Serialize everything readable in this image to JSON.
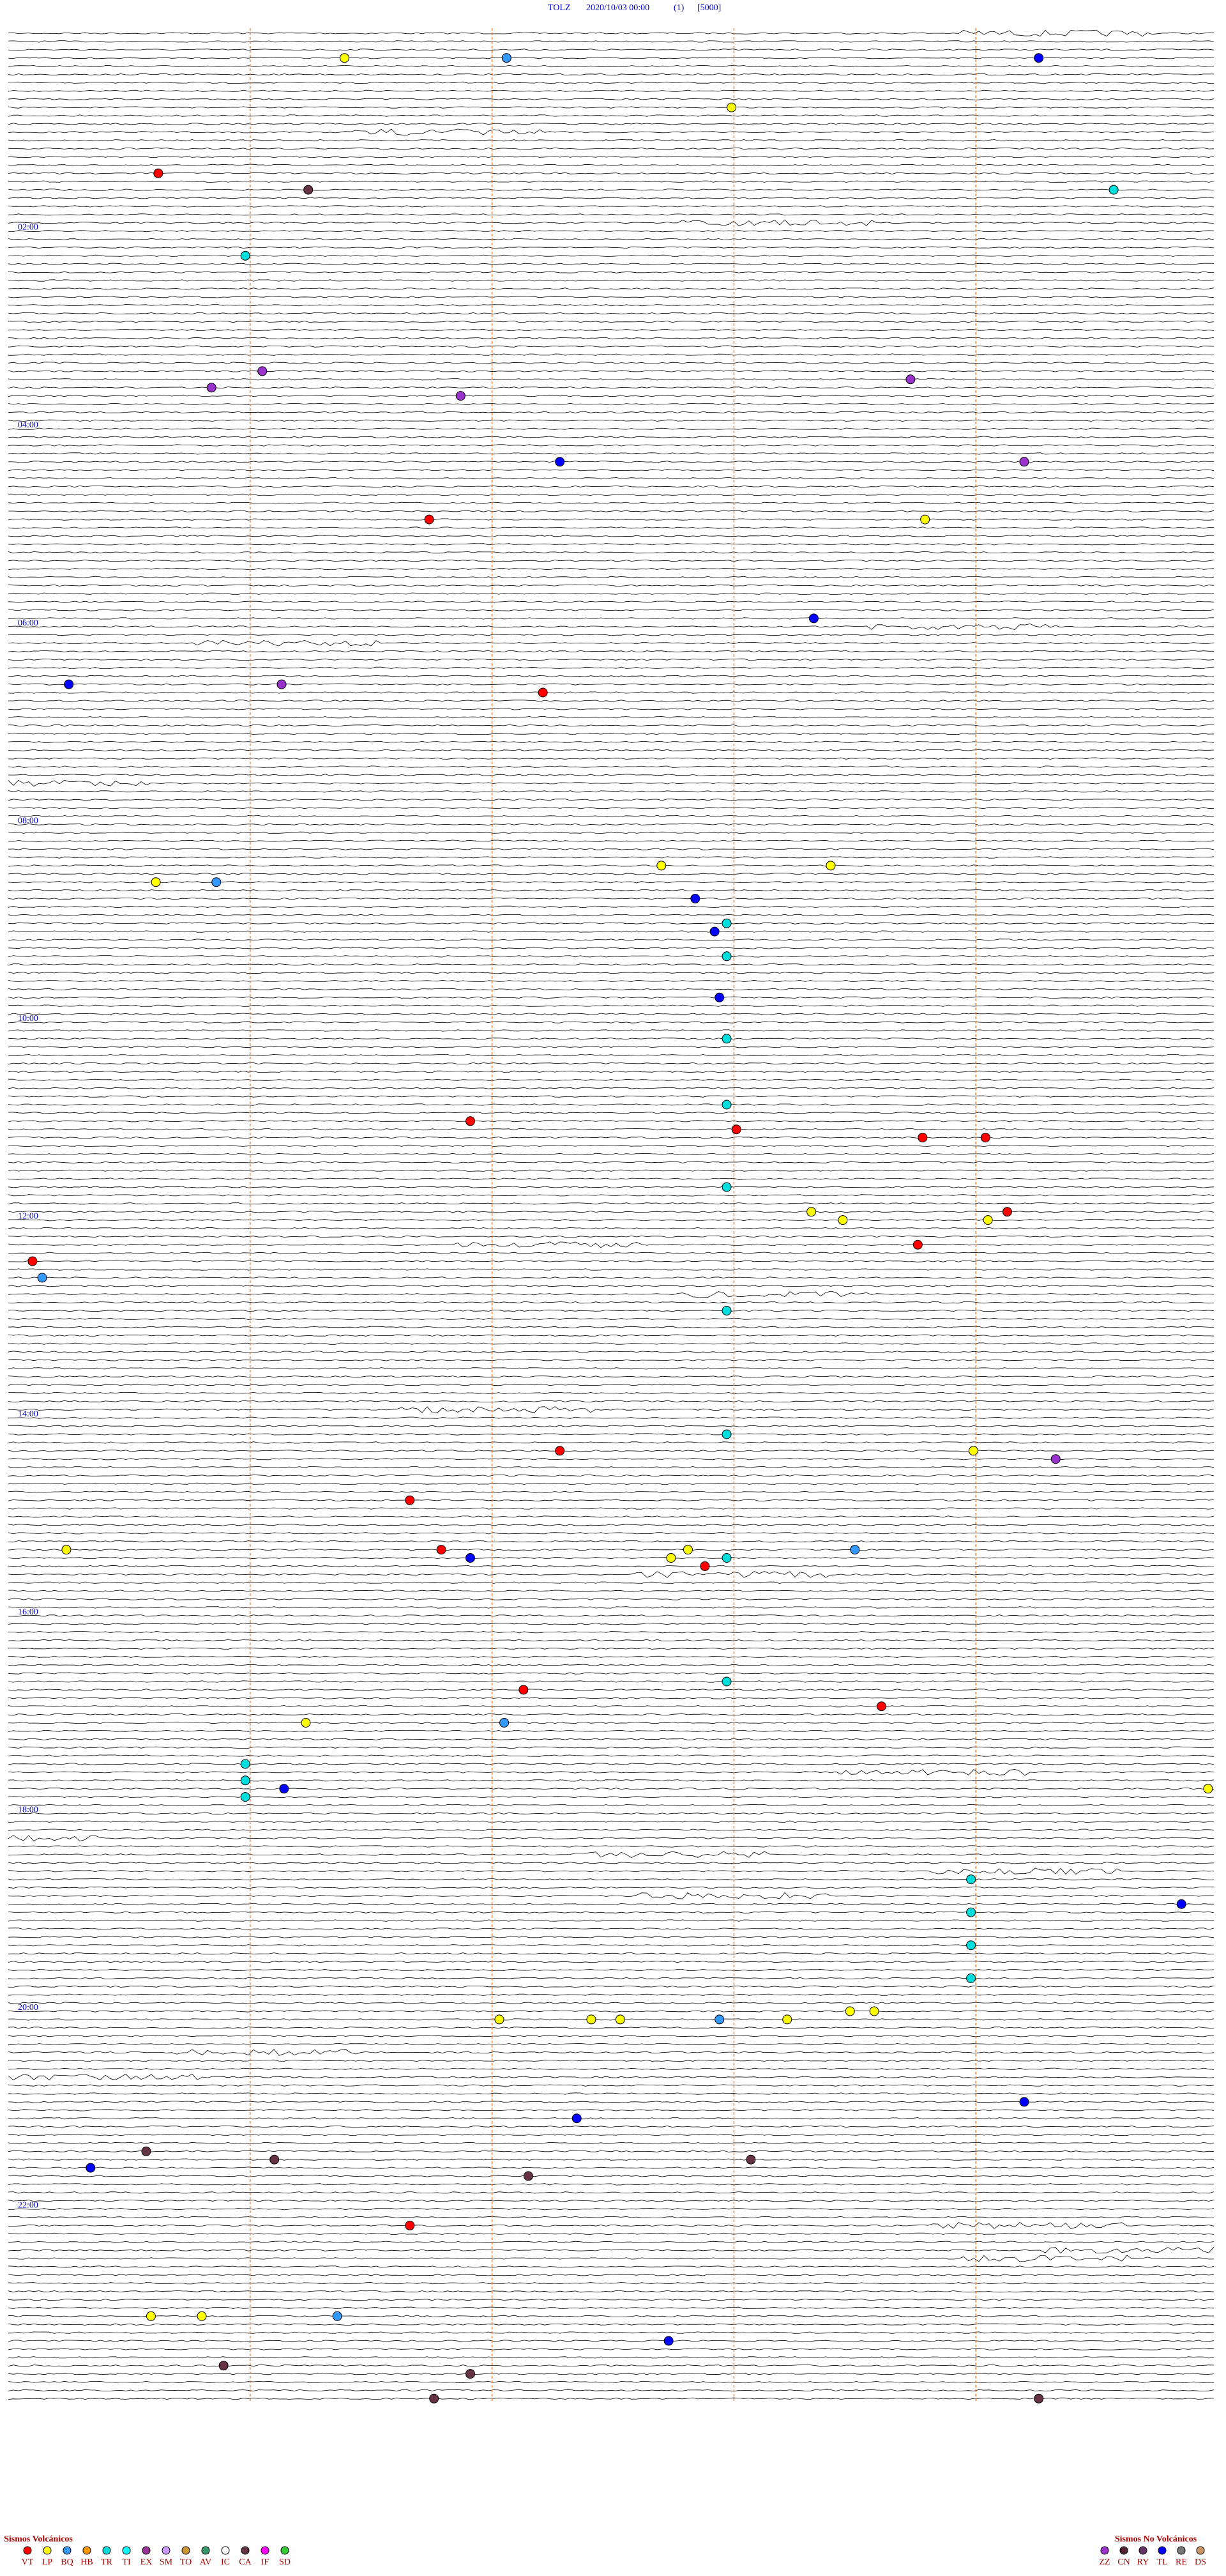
{
  "header": {
    "station": "TOLZ",
    "date": "2020/10/03 00:00",
    "channel": "(1)",
    "scale": "[5000]"
  },
  "settings": {
    "rows": 288,
    "minutes_per_row": 5,
    "minute_lines": [
      1,
      2,
      3,
      4
    ]
  },
  "hour_labels": [
    {
      "row": 24,
      "label": "02:00"
    },
    {
      "row": 48,
      "label": "04:00"
    },
    {
      "row": 72,
      "label": "06:00"
    },
    {
      "row": 96,
      "label": "08:00"
    },
    {
      "row": 120,
      "label": "10:00"
    },
    {
      "row": 144,
      "label": "12:00"
    },
    {
      "row": 168,
      "label": "14:00"
    },
    {
      "row": 192,
      "label": "16:00"
    },
    {
      "row": 216,
      "label": "18:00"
    },
    {
      "row": 240,
      "label": "20:00"
    },
    {
      "row": 264,
      "label": "22:00"
    }
  ],
  "legend": {
    "volcanic": {
      "title": "Sismos Volcánicos",
      "types": [
        {
          "code": "VT",
          "color": "#ff0000"
        },
        {
          "code": "LP",
          "color": "#ffff00"
        },
        {
          "code": "BQ",
          "color": "#3399ff"
        },
        {
          "code": "HB",
          "color": "#ff9900"
        },
        {
          "code": "TR",
          "color": "#00dddd"
        },
        {
          "code": "TI",
          "color": "#00ffff"
        },
        {
          "code": "EX",
          "color": "#993399"
        },
        {
          "code": "SM",
          "color": "#cc99ff"
        },
        {
          "code": "TO",
          "color": "#cc9933"
        },
        {
          "code": "AV",
          "color": "#339966"
        },
        {
          "code": "IC",
          "color": "#ffffff"
        },
        {
          "code": "CA",
          "color": "#663344"
        },
        {
          "code": "IF",
          "color": "#ff00ff"
        },
        {
          "code": "SD",
          "color": "#33cc33"
        }
      ]
    },
    "nonvolcanic": {
      "title": "Sismos No Volcánicos",
      "types": [
        {
          "code": "ZZ",
          "color": "#9933cc"
        },
        {
          "code": "CN",
          "color": "#552233"
        },
        {
          "code": "RY",
          "color": "#663366"
        },
        {
          "code": "TL",
          "color": "#0000ff"
        },
        {
          "code": "RE",
          "color": "#777777"
        },
        {
          "code": "DS",
          "color": "#cc9966"
        }
      ]
    }
  },
  "events": [
    {
      "row": 3,
      "minute": 1.39,
      "type": "LP"
    },
    {
      "row": 3,
      "minute": 2.06,
      "type": "BQ"
    },
    {
      "row": 3,
      "minute": 4.26,
      "type": "TL"
    },
    {
      "row": 9,
      "minute": 2.99,
      "type": "LP"
    },
    {
      "row": 17,
      "minute": 0.62,
      "type": "VT"
    },
    {
      "row": 19,
      "minute": 1.24,
      "type": "CA"
    },
    {
      "row": 19,
      "minute": 4.57,
      "type": "TR"
    },
    {
      "row": 27,
      "minute": 0.98,
      "type": "TR"
    },
    {
      "row": 41,
      "minute": 1.05,
      "type": "ZZ"
    },
    {
      "row": 43,
      "minute": 0.84,
      "type": "ZZ"
    },
    {
      "row": 44,
      "minute": 1.87,
      "type": "ZZ"
    },
    {
      "row": 42,
      "minute": 3.73,
      "type": "ZZ"
    },
    {
      "row": 52,
      "minute": 2.28,
      "type": "TL"
    },
    {
      "row": 52,
      "minute": 4.2,
      "type": "ZZ"
    },
    {
      "row": 59,
      "minute": 1.74,
      "type": "VT"
    },
    {
      "row": 59,
      "minute": 3.79,
      "type": "LP"
    },
    {
      "row": 71,
      "minute": 3.33,
      "type": "TL"
    },
    {
      "row": 80,
      "minute": 2.21,
      "type": "VT"
    },
    {
      "row": 79,
      "minute": 0.25,
      "type": "TL"
    },
    {
      "row": 79,
      "minute": 1.13,
      "type": "ZZ"
    },
    {
      "row": 101,
      "minute": 2.7,
      "type": "LP"
    },
    {
      "row": 101,
      "minute": 3.4,
      "type": "LP"
    },
    {
      "row": 103,
      "minute": 0.61,
      "type": "LP"
    },
    {
      "row": 103,
      "minute": 0.86,
      "type": "BQ"
    },
    {
      "row": 105,
      "minute": 2.84,
      "type": "TL"
    },
    {
      "row": 109,
      "minute": 2.92,
      "type": "TL"
    },
    {
      "row": 117,
      "minute": 2.94,
      "type": "TL"
    },
    {
      "row": 108,
      "minute": 2.97,
      "type": "TR"
    },
    {
      "row": 112,
      "minute": 2.97,
      "type": "TR"
    },
    {
      "row": 122,
      "minute": 2.97,
      "type": "TR"
    },
    {
      "row": 130,
      "minute": 2.97,
      "type": "TR"
    },
    {
      "row": 140,
      "minute": 2.97,
      "type": "TR"
    },
    {
      "row": 155,
      "minute": 2.97,
      "type": "TR"
    },
    {
      "row": 170,
      "minute": 2.97,
      "type": "TR"
    },
    {
      "row": 185,
      "minute": 2.97,
      "type": "TR"
    },
    {
      "row": 200,
      "minute": 2.97,
      "type": "TR"
    },
    {
      "row": 132,
      "minute": 1.91,
      "type": "VT"
    },
    {
      "row": 133,
      "minute": 3.01,
      "type": "VT"
    },
    {
      "row": 134,
      "minute": 3.78,
      "type": "VT"
    },
    {
      "row": 134,
      "minute": 4.04,
      "type": "VT"
    },
    {
      "row": 143,
      "minute": 4.13,
      "type": "VT"
    },
    {
      "row": 143,
      "minute": 3.32,
      "type": "LP"
    },
    {
      "row": 144,
      "minute": 3.45,
      "type": "LP"
    },
    {
      "row": 144,
      "minute": 4.05,
      "type": "LP"
    },
    {
      "row": 147,
      "minute": 3.76,
      "type": "VT"
    },
    {
      "row": 149,
      "minute": 0.1,
      "type": "VT"
    },
    {
      "row": 151,
      "minute": 0.14,
      "type": "BQ"
    },
    {
      "row": 172,
      "minute": 2.28,
      "type": "VT"
    },
    {
      "row": 173,
      "minute": 4.33,
      "type": "ZZ"
    },
    {
      "row": 172,
      "minute": 3.99,
      "type": "LP"
    },
    {
      "row": 178,
      "minute": 1.66,
      "type": "VT"
    },
    {
      "row": 184,
      "minute": 0.24,
      "type": "LP"
    },
    {
      "row": 184,
      "minute": 1.79,
      "type": "VT"
    },
    {
      "row": 185,
      "minute": 1.91,
      "type": "TL"
    },
    {
      "row": 185,
      "minute": 2.74,
      "type": "LP"
    },
    {
      "row": 184,
      "minute": 2.81,
      "type": "LP"
    },
    {
      "row": 186,
      "minute": 2.88,
      "type": "VT"
    },
    {
      "row": 184,
      "minute": 3.5,
      "type": "BQ"
    },
    {
      "row": 201,
      "minute": 2.13,
      "type": "VT"
    },
    {
      "row": 203,
      "minute": 3.61,
      "type": "VT"
    },
    {
      "row": 205,
      "minute": 1.23,
      "type": "LP"
    },
    {
      "row": 205,
      "minute": 2.05,
      "type": "BQ"
    },
    {
      "row": 210,
      "minute": 0.98,
      "type": "TR"
    },
    {
      "row": 212,
      "minute": 0.98,
      "type": "TR"
    },
    {
      "row": 214,
      "minute": 0.98,
      "type": "TR"
    },
    {
      "row": 213,
      "minute": 1.14,
      "type": "TL"
    },
    {
      "row": 213,
      "minute": 4.96,
      "type": "LP"
    },
    {
      "row": 227,
      "minute": 4.85,
      "type": "TL"
    },
    {
      "row": 224,
      "minute": 3.98,
      "type": "TR"
    },
    {
      "row": 228,
      "minute": 3.98,
      "type": "TR"
    },
    {
      "row": 232,
      "minute": 3.98,
      "type": "TR"
    },
    {
      "row": 236,
      "minute": 3.98,
      "type": "TR"
    },
    {
      "row": 241,
      "minute": 2.03,
      "type": "LP"
    },
    {
      "row": 241,
      "minute": 2.41,
      "type": "LP"
    },
    {
      "row": 241,
      "minute": 2.53,
      "type": "LP"
    },
    {
      "row": 241,
      "minute": 3.22,
      "type": "LP"
    },
    {
      "row": 240,
      "minute": 3.48,
      "type": "LP"
    },
    {
      "row": 240,
      "minute": 3.58,
      "type": "LP"
    },
    {
      "row": 241,
      "minute": 2.94,
      "type": "BQ"
    },
    {
      "row": 253,
      "minute": 2.35,
      "type": "TL"
    },
    {
      "row": 251,
      "minute": 4.2,
      "type": "TL"
    },
    {
      "row": 259,
      "minute": 0.34,
      "type": "TL"
    },
    {
      "row": 257,
      "minute": 0.57,
      "type": "CA"
    },
    {
      "row": 258,
      "minute": 1.1,
      "type": "CA"
    },
    {
      "row": 260,
      "minute": 2.15,
      "type": "CA"
    },
    {
      "row": 258,
      "minute": 3.07,
      "type": "CA"
    },
    {
      "row": 266,
      "minute": 1.66,
      "type": "VT"
    },
    {
      "row": 277,
      "minute": 0.59,
      "type": "LP"
    },
    {
      "row": 277,
      "minute": 0.8,
      "type": "LP"
    },
    {
      "row": 277,
      "minute": 1.36,
      "type": "BQ"
    },
    {
      "row": 280,
      "minute": 2.73,
      "type": "TL"
    },
    {
      "row": 283,
      "minute": 0.89,
      "type": "CA"
    },
    {
      "row": 284,
      "minute": 1.91,
      "type": "CA"
    },
    {
      "row": 287,
      "minute": 1.76,
      "type": "CA"
    },
    {
      "row": 287,
      "minute": 4.26,
      "type": "CA"
    }
  ]
}
